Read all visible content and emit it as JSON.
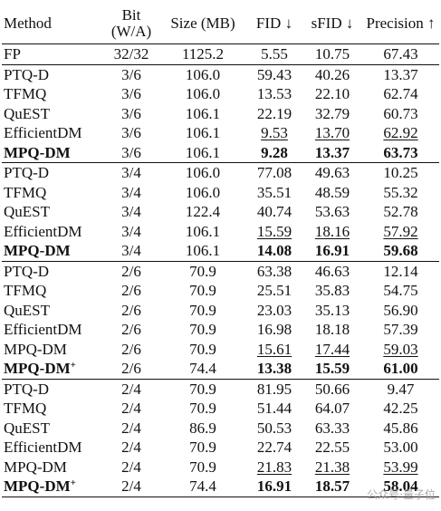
{
  "headers": {
    "method": "Method",
    "bit_line1": "Bit",
    "bit_line2": "(W/A)",
    "size": "Size (MB)",
    "fid": "FID ↓",
    "sfid": "sFID ↓",
    "precision": "Precision ↑"
  },
  "fp_row": {
    "method": "FP",
    "bit": "32/32",
    "size": "1125.2",
    "fid": "5.55",
    "sfid": "10.75",
    "precision": "67.43"
  },
  "groups": [
    {
      "rows": [
        {
          "method": "PTQ-D",
          "bit": "3/6",
          "size": "106.0",
          "fid": "59.43",
          "sfid": "40.26",
          "precision": "13.37"
        },
        {
          "method": "TFMQ",
          "bit": "3/6",
          "size": "106.0",
          "fid": "13.53",
          "sfid": "22.10",
          "precision": "62.74"
        },
        {
          "method": "QuEST",
          "bit": "3/6",
          "size": "106.1",
          "fid": "22.19",
          "sfid": "32.79",
          "precision": "60.73"
        },
        {
          "method": "EfficientDM",
          "bit": "3/6",
          "size": "106.1",
          "fid": "9.53",
          "sfid": "13.70",
          "precision": "62.92",
          "underline": [
            "fid",
            "sfid",
            "precision"
          ]
        },
        {
          "method": "MPQ-DM",
          "bit": "3/6",
          "size": "106.1",
          "fid": "9.28",
          "sfid": "13.37",
          "precision": "63.73",
          "bold_method": true,
          "bold": [
            "fid",
            "sfid",
            "precision"
          ]
        }
      ]
    },
    {
      "rows": [
        {
          "method": "PTQ-D",
          "bit": "3/4",
          "size": "106.0",
          "fid": "77.08",
          "sfid": "49.63",
          "precision": "10.25"
        },
        {
          "method": "TFMQ",
          "bit": "3/4",
          "size": "106.0",
          "fid": "35.51",
          "sfid": "48.59",
          "precision": "55.32"
        },
        {
          "method": "QuEST",
          "bit": "3/4",
          "size": "122.4",
          "fid": "40.74",
          "sfid": "53.63",
          "precision": "52.78"
        },
        {
          "method": "EfficientDM",
          "bit": "3/4",
          "size": "106.1",
          "fid": "15.59",
          "sfid": "18.16",
          "precision": "57.92",
          "underline": [
            "fid",
            "sfid",
            "precision"
          ]
        },
        {
          "method": "MPQ-DM",
          "bit": "3/4",
          "size": "106.1",
          "fid": "14.08",
          "sfid": "16.91",
          "precision": "59.68",
          "bold_method": true,
          "bold": [
            "fid",
            "sfid",
            "precision"
          ]
        }
      ]
    },
    {
      "rows": [
        {
          "method": "PTQ-D",
          "bit": "2/6",
          "size": "70.9",
          "fid": "63.38",
          "sfid": "46.63",
          "precision": "12.14"
        },
        {
          "method": "TFMQ",
          "bit": "2/6",
          "size": "70.9",
          "fid": "25.51",
          "sfid": "35.83",
          "precision": "54.75"
        },
        {
          "method": "QuEST",
          "bit": "2/6",
          "size": "70.9",
          "fid": "23.03",
          "sfid": "35.13",
          "precision": "56.90"
        },
        {
          "method": "EfficientDM",
          "bit": "2/6",
          "size": "70.9",
          "fid": "16.98",
          "sfid": "18.18",
          "precision": "57.39"
        },
        {
          "method": "MPQ-DM",
          "bit": "2/6",
          "size": "70.9",
          "fid": "15.61",
          "sfid": "17.44",
          "precision": "59.03",
          "underline": [
            "fid",
            "sfid",
            "precision"
          ]
        },
        {
          "method": "MPQ-DM",
          "plus": "+",
          "bit": "2/6",
          "size": "74.4",
          "fid": "13.38",
          "sfid": "15.59",
          "precision": "61.00",
          "bold_method": true,
          "bold": [
            "fid",
            "sfid",
            "precision"
          ]
        }
      ]
    },
    {
      "rows": [
        {
          "method": "PTQ-D",
          "bit": "2/4",
          "size": "70.9",
          "fid": "81.95",
          "sfid": "50.66",
          "precision": "9.47"
        },
        {
          "method": "TFMQ",
          "bit": "2/4",
          "size": "70.9",
          "fid": "51.44",
          "sfid": "64.07",
          "precision": "42.25"
        },
        {
          "method": "QuEST",
          "bit": "2/4",
          "size": "86.9",
          "fid": "50.53",
          "sfid": "63.33",
          "precision": "45.86"
        },
        {
          "method": "EfficientDM",
          "bit": "2/4",
          "size": "70.9",
          "fid": "22.74",
          "sfid": "22.55",
          "precision": "53.00"
        },
        {
          "method": "MPQ-DM",
          "bit": "2/4",
          "size": "70.9",
          "fid": "21.83",
          "sfid": "21.38",
          "precision": "53.99",
          "underline": [
            "fid",
            "sfid",
            "precision"
          ]
        },
        {
          "method": "MPQ-DM",
          "plus": "+",
          "bit": "2/4",
          "size": "74.4",
          "fid": "16.91",
          "sfid": "18.57",
          "precision": "58.04",
          "bold_method": true,
          "bold": [
            "fid",
            "sfid",
            "precision"
          ]
        }
      ]
    }
  ],
  "watermark": "公众号·量子位"
}
